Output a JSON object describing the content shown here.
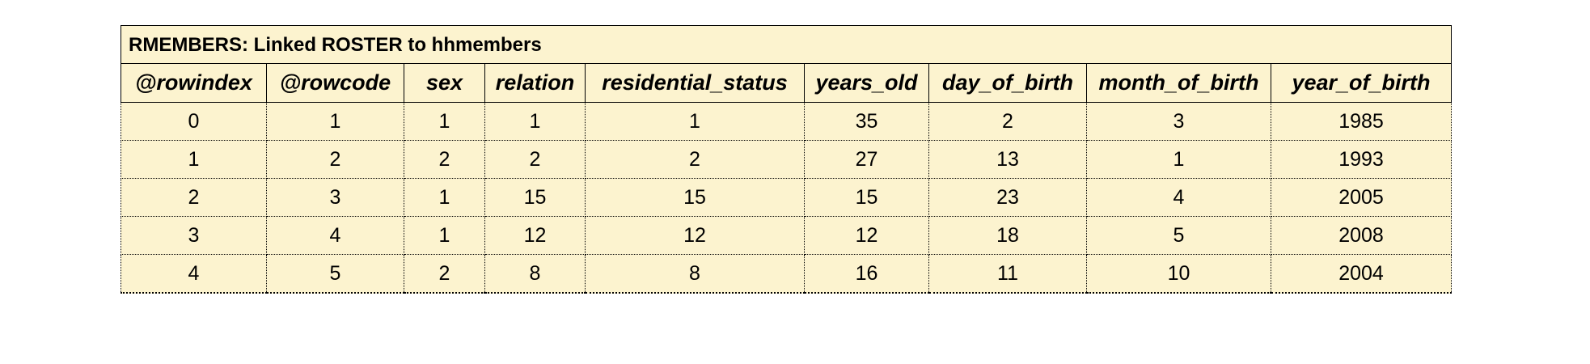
{
  "table": {
    "title": "RMEMBERS: Linked ROSTER to hhmembers",
    "columns": [
      "@rowindex",
      "@rowcode",
      "sex",
      "relation",
      "residential_status",
      "years_old",
      "day_of_birth",
      "month_of_birth",
      "year_of_birth"
    ],
    "rows": [
      [
        "0",
        "1",
        "1",
        "1",
        "1",
        "35",
        "2",
        "3",
        "1985"
      ],
      [
        "1",
        "2",
        "2",
        "2",
        "2",
        "27",
        "13",
        "1",
        "1993"
      ],
      [
        "2",
        "3",
        "1",
        "15",
        "15",
        "15",
        "23",
        "4",
        "2005"
      ],
      [
        "3",
        "4",
        "1",
        "12",
        "12",
        "12",
        "18",
        "5",
        "2008"
      ],
      [
        "4",
        "5",
        "2",
        "8",
        "8",
        "16",
        "11",
        "10",
        "2004"
      ]
    ]
  },
  "colors": {
    "background": "#fcf3cf",
    "border": "#000000"
  }
}
